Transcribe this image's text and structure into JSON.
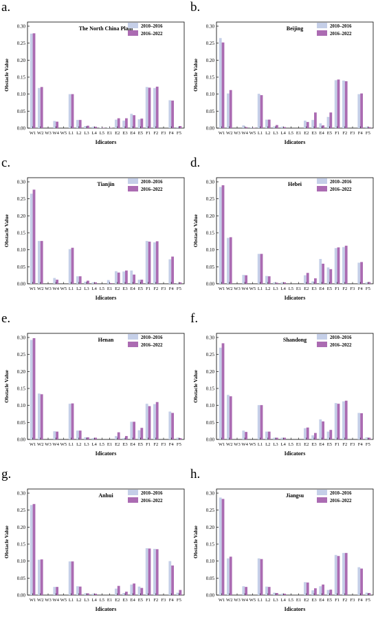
{
  "legend": {
    "series": [
      {
        "name": "2010–2016",
        "color": "#c5cfe8"
      },
      {
        "name": "2016–2022",
        "color": "#ab6bb2"
      }
    ]
  },
  "chart_data": [
    {
      "letter": "a.",
      "type": "bar",
      "title": "The North China Plain",
      "xlabel": "Idicators",
      "ylabel": "Obstacle Value",
      "ylim": [
        0,
        0.3
      ],
      "yticks": [
        "0.00",
        "0.05",
        "0.10",
        "0.15",
        "0.20",
        "0.25",
        "0.30"
      ],
      "categories": [
        "W1",
        "W2",
        "W3",
        "W4",
        "W5",
        "L1",
        "L2",
        "L3",
        "L4",
        "L5",
        "E1",
        "E2",
        "E3",
        "E4",
        "E5",
        "F1",
        "F2",
        "F3",
        "F4",
        "F5"
      ],
      "series": [
        {
          "name": "2010–2016",
          "values": [
            0.278,
            0.118,
            0.0,
            0.021,
            0.0,
            0.1,
            0.024,
            0.006,
            0.004,
            0.001,
            0.001,
            0.025,
            0.022,
            0.042,
            0.026,
            0.121,
            0.118,
            0.0,
            0.082,
            0.003
          ]
        },
        {
          "name": "2016–2022",
          "values": [
            0.279,
            0.121,
            0.0,
            0.019,
            0.0,
            0.1,
            0.024,
            0.007,
            0.004,
            0.001,
            0.001,
            0.029,
            0.029,
            0.038,
            0.028,
            0.119,
            0.122,
            0.0,
            0.081,
            0.006
          ]
        }
      ]
    },
    {
      "letter": "b.",
      "type": "bar",
      "title": "Beijing",
      "xlabel": "Idicators",
      "ylabel": "Obstacle Value",
      "ylim": [
        0,
        0.3
      ],
      "yticks": [
        "0.00",
        "0.05",
        "0.10",
        "0.15",
        "0.20",
        "0.25",
        "0.30"
      ],
      "categories": [
        "W1",
        "W2",
        "W3",
        "W4",
        "W5",
        "L1",
        "L2",
        "L3",
        "L4",
        "L5",
        "E1",
        "E2",
        "E3",
        "E4",
        "E5",
        "F1",
        "F2",
        "F3",
        "F4",
        "F5"
      ],
      "series": [
        {
          "name": "2010–2016",
          "values": [
            0.265,
            0.102,
            0.0,
            0.008,
            0.002,
            0.101,
            0.025,
            0.005,
            0.004,
            0.0,
            0.0,
            0.022,
            0.024,
            0.014,
            0.033,
            0.141,
            0.14,
            0.0,
            0.1,
            0.004
          ]
        },
        {
          "name": "2016–2022",
          "values": [
            0.252,
            0.112,
            0.0,
            0.003,
            0.001,
            0.097,
            0.025,
            0.009,
            0.003,
            0.0,
            0.0,
            0.018,
            0.046,
            0.008,
            0.046,
            0.143,
            0.138,
            0.0,
            0.102,
            0.003
          ]
        }
      ]
    },
    {
      "letter": "c.",
      "type": "bar",
      "title": "Tianjin",
      "xlabel": "Idicators",
      "ylabel": "Obstacle Value",
      "ylim": [
        0,
        0.3
      ],
      "yticks": [
        "0.00",
        "0.05",
        "0.10",
        "0.15",
        "0.20",
        "0.25",
        "0.30"
      ],
      "categories": [
        "W1",
        "W2",
        "W3",
        "W4",
        "W5",
        "L1",
        "L2",
        "L3",
        "L4",
        "L5",
        "E1",
        "E2",
        "E3",
        "E4",
        "E5",
        "F1",
        "F2",
        "F3",
        "F4",
        "F5"
      ],
      "series": [
        {
          "name": "2010–2016",
          "values": [
            0.265,
            0.126,
            0.0,
            0.017,
            0.0,
            0.102,
            0.022,
            0.006,
            0.004,
            0.0,
            0.011,
            0.037,
            0.036,
            0.039,
            0.012,
            0.126,
            0.122,
            0.0,
            0.072,
            0.002
          ]
        },
        {
          "name": "2016–2022",
          "values": [
            0.277,
            0.126,
            0.0,
            0.012,
            0.0,
            0.106,
            0.022,
            0.009,
            0.004,
            0.0,
            0.002,
            0.033,
            0.039,
            0.027,
            0.012,
            0.124,
            0.125,
            0.0,
            0.08,
            0.004
          ]
        }
      ]
    },
    {
      "letter": "d.",
      "type": "bar",
      "title": "Hebei",
      "xlabel": "Idicators",
      "ylabel": "Obstacle Value",
      "ylim": [
        0,
        0.3
      ],
      "yticks": [
        "0.00",
        "0.05",
        "0.10",
        "0.15",
        "0.20",
        "0.25",
        "0.30"
      ],
      "categories": [
        "W1",
        "W2",
        "W3",
        "W4",
        "W5",
        "L1",
        "L2",
        "L3",
        "L4",
        "L5",
        "E1",
        "E2",
        "E3",
        "E4",
        "E5",
        "F1",
        "F2",
        "F3",
        "F4",
        "F5"
      ],
      "series": [
        {
          "name": "2010–2016",
          "values": [
            0.285,
            0.135,
            0.0,
            0.026,
            0.0,
            0.088,
            0.023,
            0.004,
            0.004,
            0.0,
            0.0,
            0.025,
            0.007,
            0.073,
            0.048,
            0.105,
            0.108,
            0.0,
            0.062,
            0.004
          ]
        },
        {
          "name": "2016–2022",
          "values": [
            0.29,
            0.137,
            0.0,
            0.025,
            0.0,
            0.088,
            0.022,
            0.003,
            0.004,
            0.0,
            0.0,
            0.032,
            0.016,
            0.059,
            0.043,
            0.107,
            0.112,
            0.0,
            0.064,
            0.005
          ]
        }
      ]
    },
    {
      "letter": "e.",
      "type": "bar",
      "title": "Henan",
      "xlabel": "Idicators",
      "ylabel": "Obstacle Value",
      "ylim": [
        0,
        0.3
      ],
      "yticks": [
        "0.00",
        "0.05",
        "0.10",
        "0.15",
        "0.20",
        "0.25",
        "0.30"
      ],
      "categories": [
        "W1",
        "W2",
        "W3",
        "W4",
        "W5",
        "L1",
        "L2",
        "L3",
        "L4",
        "L5",
        "E1",
        "E2",
        "E3",
        "E4",
        "E5",
        "F1",
        "F2",
        "F3",
        "F4",
        "F5"
      ],
      "series": [
        {
          "name": "2010–2016",
          "values": [
            0.293,
            0.135,
            0.0,
            0.024,
            0.0,
            0.105,
            0.026,
            0.006,
            0.004,
            0.0,
            0.0,
            0.01,
            0.004,
            0.052,
            0.027,
            0.105,
            0.104,
            0.0,
            0.082,
            0.005
          ]
        },
        {
          "name": "2016–2022",
          "values": [
            0.298,
            0.133,
            0.0,
            0.023,
            0.0,
            0.106,
            0.026,
            0.006,
            0.005,
            0.0,
            0.0,
            0.021,
            0.01,
            0.052,
            0.034,
            0.098,
            0.11,
            0.0,
            0.078,
            0.004
          ]
        }
      ]
    },
    {
      "letter": "f.",
      "type": "bar",
      "title": "Shandong",
      "xlabel": "Idicators",
      "ylabel": "Obstacle Value",
      "ylim": [
        0,
        0.3
      ],
      "yticks": [
        "0.00",
        "0.05",
        "0.10",
        "0.15",
        "0.20",
        "0.25",
        "0.30"
      ],
      "categories": [
        "W1",
        "W2",
        "W3",
        "W4",
        "W5",
        "L1",
        "L2",
        "L3",
        "L4",
        "L5",
        "E1",
        "E2",
        "E3",
        "E4",
        "E5",
        "F1",
        "F2",
        "F3",
        "F4",
        "F5"
      ],
      "series": [
        {
          "name": "2010–2016",
          "values": [
            0.27,
            0.131,
            0.0,
            0.026,
            0.0,
            0.101,
            0.023,
            0.005,
            0.005,
            0.0,
            0.0,
            0.033,
            0.012,
            0.059,
            0.023,
            0.107,
            0.112,
            0.0,
            0.078,
            0.006
          ]
        },
        {
          "name": "2016–2022",
          "values": [
            0.283,
            0.127,
            0.0,
            0.022,
            0.0,
            0.101,
            0.023,
            0.005,
            0.005,
            0.0,
            0.0,
            0.035,
            0.019,
            0.053,
            0.028,
            0.105,
            0.114,
            0.0,
            0.077,
            0.005
          ]
        }
      ]
    },
    {
      "letter": "g.",
      "type": "bar",
      "title": "Anhui",
      "xlabel": "Idicators",
      "ylabel": "Obstacle Value",
      "ylim": [
        0,
        0.3
      ],
      "yticks": [
        "0.00",
        "0.05",
        "0.10",
        "0.15",
        "0.20",
        "0.25",
        "0.30"
      ],
      "categories": [
        "W1",
        "W2",
        "W3",
        "W4",
        "W5",
        "L1",
        "L2",
        "L3",
        "L4",
        "L5",
        "E1",
        "E2",
        "E3",
        "E4",
        "E5",
        "F1",
        "F2",
        "F3",
        "F4",
        "F5"
      ],
      "series": [
        {
          "name": "2010–2016",
          "values": [
            0.265,
            0.104,
            0.0,
            0.024,
            0.0,
            0.099,
            0.026,
            0.005,
            0.004,
            0.0,
            0.0,
            0.019,
            0.006,
            0.031,
            0.025,
            0.138,
            0.136,
            0.0,
            0.1,
            0.007
          ]
        },
        {
          "name": "2016–2022",
          "values": [
            0.268,
            0.105,
            0.0,
            0.024,
            0.0,
            0.099,
            0.025,
            0.005,
            0.004,
            0.0,
            0.0,
            0.027,
            0.01,
            0.034,
            0.021,
            0.137,
            0.135,
            0.0,
            0.087,
            0.015
          ]
        }
      ]
    },
    {
      "letter": "h.",
      "type": "bar",
      "title": "Jiangsu",
      "xlabel": "Idicators",
      "ylabel": "Obstacle Value",
      "ylim": [
        0,
        0.3
      ],
      "yticks": [
        "0.00",
        "0.05",
        "0.10",
        "0.15",
        "0.20",
        "0.25",
        "0.30"
      ],
      "categories": [
        "W1",
        "W2",
        "W3",
        "W4",
        "W5",
        "L1",
        "L2",
        "L3",
        "L4",
        "L5",
        "E1",
        "E2",
        "E3",
        "E4",
        "E5",
        "F1",
        "F2",
        "F3",
        "F4",
        "F5"
      ],
      "series": [
        {
          "name": "2010–2016",
          "values": [
            0.287,
            0.108,
            0.0,
            0.026,
            0.0,
            0.108,
            0.025,
            0.007,
            0.004,
            0.0,
            0.0,
            0.038,
            0.014,
            0.026,
            0.015,
            0.118,
            0.124,
            0.0,
            0.082,
            0.007
          ]
        },
        {
          "name": "2016–2022",
          "values": [
            0.283,
            0.113,
            0.0,
            0.024,
            0.0,
            0.106,
            0.024,
            0.006,
            0.004,
            0.0,
            0.0,
            0.037,
            0.02,
            0.031,
            0.016,
            0.115,
            0.124,
            0.0,
            0.078,
            0.006
          ]
        }
      ]
    }
  ]
}
